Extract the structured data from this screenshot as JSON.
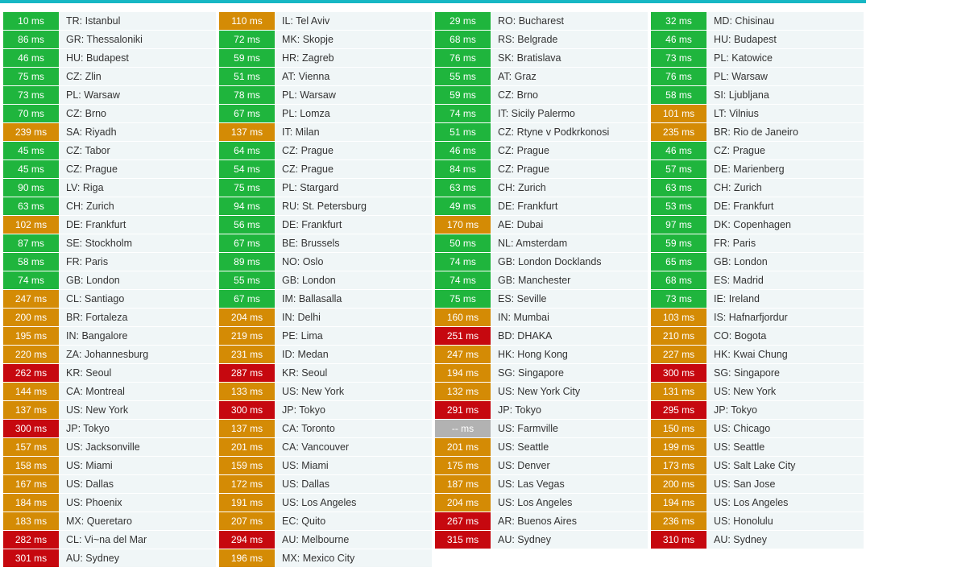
{
  "colors": {
    "good": "#1fb53d",
    "medium": "#d48b05",
    "bad": "#c6080f",
    "none": "#b2b2b2",
    "accent": "#17b7c4"
  },
  "columns": [
    [
      {
        "ms": "10 ms",
        "loc": "TR: Istanbul",
        "s": "g"
      },
      {
        "ms": "86 ms",
        "loc": "GR: Thessaloniki",
        "s": "g"
      },
      {
        "ms": "46 ms",
        "loc": "HU: Budapest",
        "s": "g"
      },
      {
        "ms": "75 ms",
        "loc": "CZ: Zlin",
        "s": "g"
      },
      {
        "ms": "73 ms",
        "loc": "PL: Warsaw",
        "s": "g"
      },
      {
        "ms": "70 ms",
        "loc": "CZ: Brno",
        "s": "g"
      },
      {
        "ms": "239 ms",
        "loc": "SA: Riyadh",
        "s": "o"
      },
      {
        "ms": "45 ms",
        "loc": "CZ: Tabor",
        "s": "g"
      },
      {
        "ms": "45 ms",
        "loc": "CZ: Prague",
        "s": "g"
      },
      {
        "ms": "90 ms",
        "loc": "LV: Riga",
        "s": "g"
      },
      {
        "ms": "63 ms",
        "loc": "CH: Zurich",
        "s": "g"
      },
      {
        "ms": "102 ms",
        "loc": "DE: Frankfurt",
        "s": "o"
      },
      {
        "ms": "87 ms",
        "loc": "SE: Stockholm",
        "s": "g"
      },
      {
        "ms": "58 ms",
        "loc": "FR: Paris",
        "s": "g"
      },
      {
        "ms": "74 ms",
        "loc": "GB: London",
        "s": "g"
      },
      {
        "ms": "247 ms",
        "loc": "CL: Santiago",
        "s": "o"
      },
      {
        "ms": "200 ms",
        "loc": "BR: Fortaleza",
        "s": "o"
      },
      {
        "ms": "195 ms",
        "loc": "IN: Bangalore",
        "s": "o"
      },
      {
        "ms": "220 ms",
        "loc": "ZA: Johannesburg",
        "s": "o"
      },
      {
        "ms": "262 ms",
        "loc": "KR: Seoul",
        "s": "r"
      },
      {
        "ms": "144 ms",
        "loc": "CA: Montreal",
        "s": "o"
      },
      {
        "ms": "137 ms",
        "loc": "US: New York",
        "s": "o"
      },
      {
        "ms": "300 ms",
        "loc": "JP: Tokyo",
        "s": "r"
      },
      {
        "ms": "157 ms",
        "loc": "US: Jacksonville",
        "s": "o"
      },
      {
        "ms": "158 ms",
        "loc": "US: Miami",
        "s": "o"
      },
      {
        "ms": "167 ms",
        "loc": "US: Dallas",
        "s": "o"
      },
      {
        "ms": "184 ms",
        "loc": "US: Phoenix",
        "s": "o"
      },
      {
        "ms": "183 ms",
        "loc": "MX: Queretaro",
        "s": "o"
      },
      {
        "ms": "282 ms",
        "loc": "CL: Vi~na del Mar",
        "s": "r"
      },
      {
        "ms": "301 ms",
        "loc": "AU: Sydney",
        "s": "r"
      }
    ],
    [
      {
        "ms": "110 ms",
        "loc": "IL: Tel Aviv",
        "s": "o"
      },
      {
        "ms": "72 ms",
        "loc": "MK: Skopje",
        "s": "g"
      },
      {
        "ms": "59 ms",
        "loc": "HR: Zagreb",
        "s": "g"
      },
      {
        "ms": "51 ms",
        "loc": "AT: Vienna",
        "s": "g"
      },
      {
        "ms": "78 ms",
        "loc": "PL: Warsaw",
        "s": "g"
      },
      {
        "ms": "67 ms",
        "loc": "PL: Lomza",
        "s": "g"
      },
      {
        "ms": "137 ms",
        "loc": "IT: Milan",
        "s": "o"
      },
      {
        "ms": "64 ms",
        "loc": "CZ: Prague",
        "s": "g"
      },
      {
        "ms": "54 ms",
        "loc": "CZ: Prague",
        "s": "g"
      },
      {
        "ms": "75 ms",
        "loc": "PL: Stargard",
        "s": "g"
      },
      {
        "ms": "94 ms",
        "loc": "RU: St. Petersburg",
        "s": "g"
      },
      {
        "ms": "56 ms",
        "loc": "DE: Frankfurt",
        "s": "g"
      },
      {
        "ms": "67 ms",
        "loc": "BE: Brussels",
        "s": "g"
      },
      {
        "ms": "89 ms",
        "loc": "NO: Oslo",
        "s": "g"
      },
      {
        "ms": "55 ms",
        "loc": "GB: London",
        "s": "g"
      },
      {
        "ms": "67 ms",
        "loc": "IM: Ballasalla",
        "s": "g"
      },
      {
        "ms": "204 ms",
        "loc": "IN: Delhi",
        "s": "o"
      },
      {
        "ms": "219 ms",
        "loc": "PE: Lima",
        "s": "o"
      },
      {
        "ms": "231 ms",
        "loc": "ID: Medan",
        "s": "o"
      },
      {
        "ms": "287 ms",
        "loc": "KR: Seoul",
        "s": "r"
      },
      {
        "ms": "133 ms",
        "loc": "US: New York",
        "s": "o"
      },
      {
        "ms": "300 ms",
        "loc": "JP: Tokyo",
        "s": "r"
      },
      {
        "ms": "137 ms",
        "loc": "CA: Toronto",
        "s": "o"
      },
      {
        "ms": "201 ms",
        "loc": "CA: Vancouver",
        "s": "o"
      },
      {
        "ms": "159 ms",
        "loc": "US: Miami",
        "s": "o"
      },
      {
        "ms": "172 ms",
        "loc": "US: Dallas",
        "s": "o"
      },
      {
        "ms": "191 ms",
        "loc": "US: Los Angeles",
        "s": "o"
      },
      {
        "ms": "207 ms",
        "loc": "EC: Quito",
        "s": "o"
      },
      {
        "ms": "294 ms",
        "loc": "AU: Melbourne",
        "s": "r"
      },
      {
        "ms": "196 ms",
        "loc": "MX: Mexico City",
        "s": "o"
      }
    ],
    [
      {
        "ms": "29 ms",
        "loc": "RO: Bucharest",
        "s": "g"
      },
      {
        "ms": "68 ms",
        "loc": "RS: Belgrade",
        "s": "g"
      },
      {
        "ms": "76 ms",
        "loc": "SK: Bratislava",
        "s": "g"
      },
      {
        "ms": "55 ms",
        "loc": "AT: Graz",
        "s": "g"
      },
      {
        "ms": "59 ms",
        "loc": "CZ: Brno",
        "s": "g"
      },
      {
        "ms": "74 ms",
        "loc": "IT: Sicily Palermo",
        "s": "g"
      },
      {
        "ms": "51 ms",
        "loc": "CZ: Rtyne v Podkrkonosi",
        "s": "g"
      },
      {
        "ms": "46 ms",
        "loc": "CZ: Prague",
        "s": "g"
      },
      {
        "ms": "84 ms",
        "loc": "CZ: Prague",
        "s": "g"
      },
      {
        "ms": "63 ms",
        "loc": "CH: Zurich",
        "s": "g"
      },
      {
        "ms": "49 ms",
        "loc": "DE: Frankfurt",
        "s": "g"
      },
      {
        "ms": "170 ms",
        "loc": "AE: Dubai",
        "s": "o"
      },
      {
        "ms": "50 ms",
        "loc": "NL: Amsterdam",
        "s": "g"
      },
      {
        "ms": "74 ms",
        "loc": "GB: London Docklands",
        "s": "g"
      },
      {
        "ms": "74 ms",
        "loc": "GB: Manchester",
        "s": "g"
      },
      {
        "ms": "75 ms",
        "loc": "ES: Seville",
        "s": "g"
      },
      {
        "ms": "160 ms",
        "loc": "IN: Mumbai",
        "s": "o"
      },
      {
        "ms": "251 ms",
        "loc": "BD: DHAKA",
        "s": "r"
      },
      {
        "ms": "247 ms",
        "loc": "HK: Hong Kong",
        "s": "o"
      },
      {
        "ms": "194 ms",
        "loc": "SG: Singapore",
        "s": "o"
      },
      {
        "ms": "132 ms",
        "loc": "US: New York City",
        "s": "o"
      },
      {
        "ms": "291 ms",
        "loc": "JP: Tokyo",
        "s": "r"
      },
      {
        "ms": "-- ms",
        "loc": "US: Farmville",
        "s": "n"
      },
      {
        "ms": "201 ms",
        "loc": "US: Seattle",
        "s": "o"
      },
      {
        "ms": "175 ms",
        "loc": "US: Denver",
        "s": "o"
      },
      {
        "ms": "187 ms",
        "loc": "US: Las Vegas",
        "s": "o"
      },
      {
        "ms": "204 ms",
        "loc": "US: Los Angeles",
        "s": "o"
      },
      {
        "ms": "267 ms",
        "loc": "AR: Buenos Aires",
        "s": "r"
      },
      {
        "ms": "315 ms",
        "loc": "AU: Sydney",
        "s": "r"
      }
    ],
    [
      {
        "ms": "32 ms",
        "loc": "MD: Chisinau",
        "s": "g"
      },
      {
        "ms": "46 ms",
        "loc": "HU: Budapest",
        "s": "g"
      },
      {
        "ms": "73 ms",
        "loc": "PL: Katowice",
        "s": "g"
      },
      {
        "ms": "76 ms",
        "loc": "PL: Warsaw",
        "s": "g"
      },
      {
        "ms": "58 ms",
        "loc": "SI: Ljubljana",
        "s": "g"
      },
      {
        "ms": "101 ms",
        "loc": "LT: Vilnius",
        "s": "o"
      },
      {
        "ms": "235 ms",
        "loc": "BR: Rio de Janeiro",
        "s": "o"
      },
      {
        "ms": "46 ms",
        "loc": "CZ: Prague",
        "s": "g"
      },
      {
        "ms": "57 ms",
        "loc": "DE: Marienberg",
        "s": "g"
      },
      {
        "ms": "63 ms",
        "loc": "CH: Zurich",
        "s": "g"
      },
      {
        "ms": "53 ms",
        "loc": "DE: Frankfurt",
        "s": "g"
      },
      {
        "ms": "97 ms",
        "loc": "DK: Copenhagen",
        "s": "g"
      },
      {
        "ms": "59 ms",
        "loc": "FR: Paris",
        "s": "g"
      },
      {
        "ms": "65 ms",
        "loc": "GB: London",
        "s": "g"
      },
      {
        "ms": "68 ms",
        "loc": "ES: Madrid",
        "s": "g"
      },
      {
        "ms": "73 ms",
        "loc": "IE: Ireland",
        "s": "g"
      },
      {
        "ms": "103 ms",
        "loc": "IS: Hafnarfjordur",
        "s": "o"
      },
      {
        "ms": "210 ms",
        "loc": "CO: Bogota",
        "s": "o"
      },
      {
        "ms": "227 ms",
        "loc": "HK: Kwai Chung",
        "s": "o"
      },
      {
        "ms": "300 ms",
        "loc": "SG: Singapore",
        "s": "r"
      },
      {
        "ms": "131 ms",
        "loc": "US: New York",
        "s": "o"
      },
      {
        "ms": "295 ms",
        "loc": "JP: Tokyo",
        "s": "r"
      },
      {
        "ms": "150 ms",
        "loc": "US: Chicago",
        "s": "o"
      },
      {
        "ms": "199 ms",
        "loc": "US: Seattle",
        "s": "o"
      },
      {
        "ms": "173 ms",
        "loc": "US: Salt Lake City",
        "s": "o"
      },
      {
        "ms": "200 ms",
        "loc": "US: San Jose",
        "s": "o"
      },
      {
        "ms": "194 ms",
        "loc": "US: Los Angeles",
        "s": "o"
      },
      {
        "ms": "236 ms",
        "loc": "US: Honolulu",
        "s": "o"
      },
      {
        "ms": "310 ms",
        "loc": "AU: Sydney",
        "s": "r"
      }
    ]
  ]
}
